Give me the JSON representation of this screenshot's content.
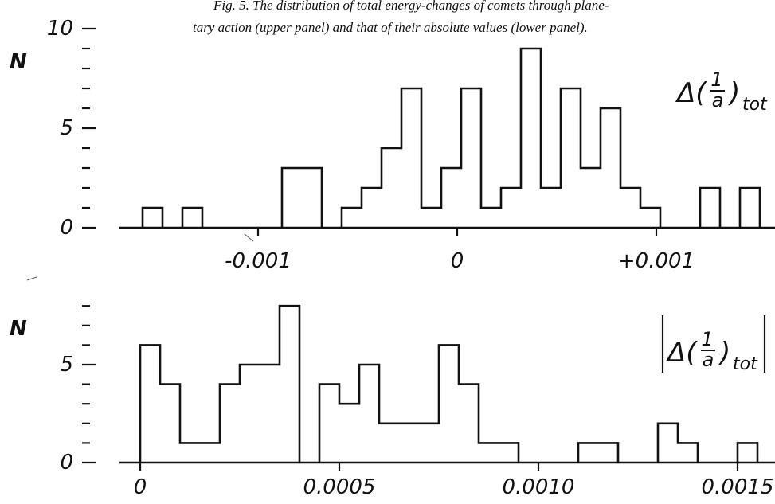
{
  "caption": {
    "line1": "Fig. 5.  The distribution of total energy-changes of comets through plane-",
    "line2": "tary action (upper panel) and  that of their absolute values (lower panel)."
  },
  "chart_data": [
    {
      "type": "bar",
      "panel": "upper",
      "ylabel": "N",
      "label": {
        "delta": "Δ(",
        "num": "1",
        "den": "a",
        "close": ")",
        "sub": "tot"
      },
      "bin_width": 0.0001,
      "x_start": -0.00158,
      "values": [
        1,
        0,
        1,
        0,
        0,
        0,
        0,
        3,
        3,
        0,
        1,
        2,
        4,
        7,
        1,
        3,
        7,
        1,
        2,
        9,
        2,
        7,
        3,
        6,
        2,
        1,
        0,
        0,
        2,
        0,
        2,
        0,
        0
      ],
      "xlim": [
        -0.0016,
        0.0016
      ],
      "ylim": [
        0,
        10
      ],
      "x_ticks": [
        {
          "value": -0.001,
          "label": "-0.001"
        },
        {
          "value": 0,
          "label": "0"
        },
        {
          "value": 0.001,
          "label": "+0.001"
        }
      ],
      "y_ticks": [
        {
          "value": 0,
          "label": "0"
        },
        {
          "value": 5,
          "label": "5"
        },
        {
          "value": 10,
          "label": "10"
        }
      ],
      "y_minor_ticks": [
        1,
        2,
        3,
        4,
        6,
        7,
        8,
        9
      ]
    },
    {
      "type": "bar",
      "panel": "lower",
      "ylabel": "N",
      "label": {
        "delta": "Δ(",
        "num": "1",
        "den": "a",
        "close": ")",
        "sub": "tot"
      },
      "bin_width": 5e-05,
      "x_start": 0,
      "values": [
        6,
        4,
        1,
        1,
        4,
        5,
        5,
        8,
        0,
        4,
        3,
        5,
        2,
        2,
        2,
        6,
        4,
        1,
        1,
        0,
        0,
        0,
        1,
        1,
        0,
        0,
        2,
        1,
        0,
        0,
        1
      ],
      "xlim": [
        0,
        0.00155
      ],
      "ylim": [
        0,
        8
      ],
      "x_ticks": [
        {
          "value": 0,
          "label": "0"
        },
        {
          "value": 0.0005,
          "label": "0.0005"
        },
        {
          "value": 0.001,
          "label": "0.0010"
        },
        {
          "value": 0.0015,
          "label": "0.0015"
        }
      ],
      "y_ticks": [
        {
          "value": 0,
          "label": "0"
        },
        {
          "value": 5,
          "label": "5"
        }
      ],
      "y_minor_ticks": [
        1,
        2,
        3,
        4,
        6,
        7,
        8
      ]
    }
  ]
}
